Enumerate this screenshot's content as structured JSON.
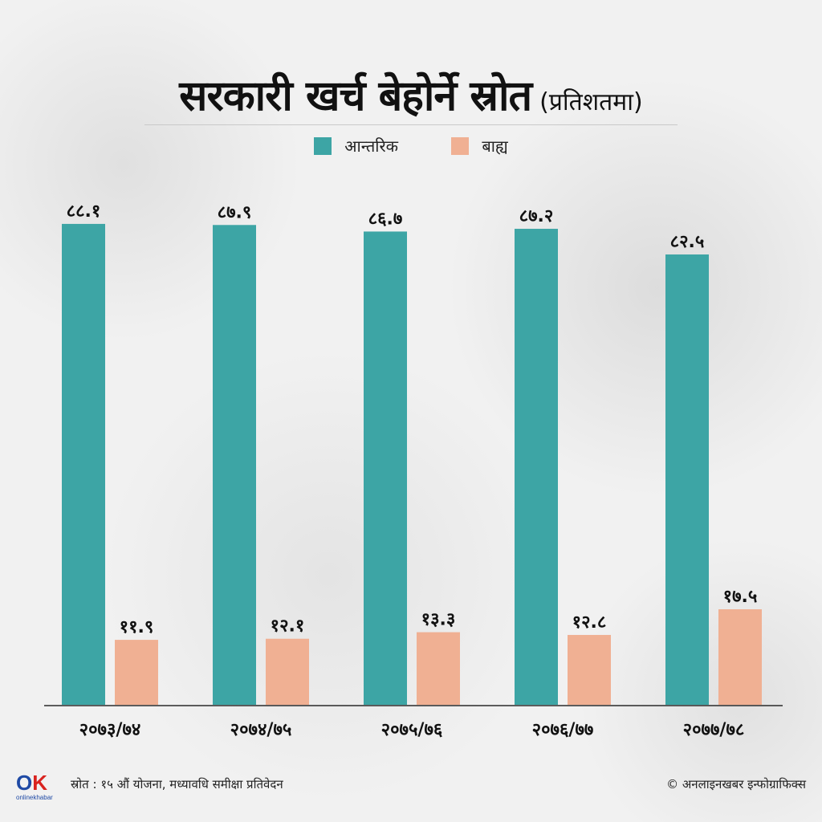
{
  "title": {
    "main": "सरकारी खर्च बेहोर्ने स्रोत",
    "sub": "(प्रतिशतमा)"
  },
  "legend": [
    {
      "label": "आन्तरिक",
      "color": "#3da5a5"
    },
    {
      "label": "बाह्य",
      "color": "#f0b093"
    }
  ],
  "footer": {
    "source": "स्रोत : १५ औं योजना, मध्यावधि समीक्षा प्रतिवेदन",
    "credit": "© अनलाइनखबर इन्फोग्राफिक्स",
    "logo": "OK",
    "logo_text": "onlinekhabar"
  },
  "chart_data": {
    "type": "bar",
    "title": "सरकारी खर्च बेहोर्ने स्रोत (प्रतिशतमा)",
    "categories": [
      "२०७३/७४",
      "२०७४/७५",
      "२०७५/७६",
      "२०७६/७७",
      "२०७७/७८"
    ],
    "series": [
      {
        "name": "आन्तरिक",
        "color": "#3da5a5",
        "values": [
          88.1,
          87.9,
          86.7,
          87.2,
          82.5
        ],
        "labels": [
          "८८.१",
          "८७.९",
          "८६.७",
          "८७.२",
          "८२.५"
        ]
      },
      {
        "name": "बाह्य",
        "color": "#f0b093",
        "values": [
          11.9,
          12.1,
          13.3,
          12.8,
          17.5
        ],
        "labels": [
          "११.९",
          "१२.१",
          "१३.३",
          "१२.८",
          "१७.५"
        ]
      }
    ],
    "ylim": [
      0,
      100
    ],
    "grid": false,
    "legend_position": "top"
  }
}
